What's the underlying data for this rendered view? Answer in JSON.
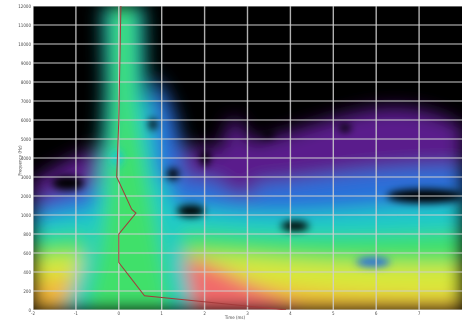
{
  "chart_data": {
    "type": "heatmap",
    "title": "",
    "xlabel": "Time (ms)",
    "ylabel": "Frequency (Hz)",
    "xlim": [
      -2,
      8
    ],
    "ylim": [
      0,
      12000
    ],
    "x_ticks": [
      "-2",
      "-1",
      "0",
      "1",
      "2",
      "3",
      "4",
      "5",
      "6",
      "7"
    ],
    "y_ticks": [
      "12000",
      "11000",
      "10000",
      "9000",
      "8000",
      "7000",
      "6000",
      "5000",
      "4000",
      "3000",
      "2000",
      "1000",
      "800",
      "600",
      "400",
      "200",
      "0"
    ],
    "grid": true,
    "colormap": [
      "#000000",
      "#5a1a8c",
      "#2a6fd9",
      "#1fc9c9",
      "#3fe06a",
      "#d8e83a",
      "#f2b63a",
      "#f26a6a"
    ],
    "series": [
      {
        "type": "line",
        "color": "#a33a3a",
        "x": [
          0.05,
          0.0,
          -0.05,
          0.3,
          0.4,
          0.0,
          0.0,
          0.6,
          3.9
        ],
        "y": [
          12000,
          6000,
          3000,
          1300,
          1100,
          800,
          500,
          150,
          0
        ]
      }
    ]
  }
}
